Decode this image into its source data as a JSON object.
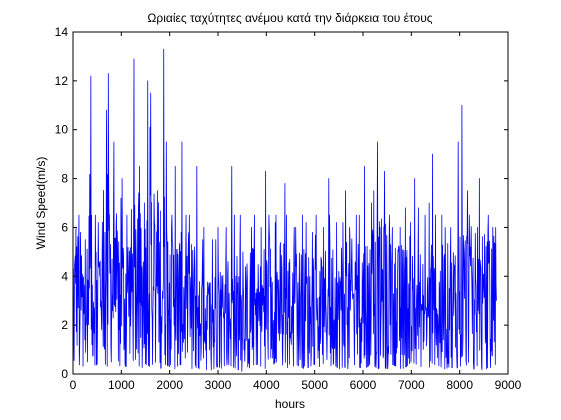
{
  "chart_data": {
    "type": "line",
    "title": "Ωριαίες ταχύτητες ανέμου κατά την διάρκεια του έτους",
    "xlabel": "hours",
    "ylabel": "Wind Speed(m/s)",
    "xlim": [
      0,
      9000
    ],
    "ylim": [
      0,
      14
    ],
    "xticks": [
      0,
      1000,
      2000,
      3000,
      4000,
      5000,
      6000,
      7000,
      8000,
      9000
    ],
    "yticks": [
      0,
      2,
      4,
      6,
      8,
      10,
      12,
      14
    ],
    "grid": false,
    "series": [
      {
        "color": "#0000ff",
        "x": [
          0,
          100,
          200,
          300,
          400,
          500,
          600,
          700,
          800,
          900,
          1000,
          1100,
          1200,
          1300,
          1400,
          1500,
          1600,
          1700,
          1800,
          1900,
          2000,
          2100,
          2200,
          2300,
          2400,
          2500,
          2600,
          2700,
          2800,
          2900,
          3000,
          3100,
          3200,
          3300,
          3400,
          3500,
          3600,
          3700,
          3800,
          3900,
          4000,
          4100,
          4200,
          4300,
          4400,
          4500,
          4600,
          4700,
          4800,
          4900,
          5000,
          5100,
          5200,
          5300,
          5400,
          5500,
          5600,
          5700,
          5800,
          5900,
          6000,
          6100,
          6200,
          6300,
          6400,
          6500,
          6600,
          6700,
          6800,
          6900,
          7000,
          7100,
          7200,
          7300,
          7400,
          7500,
          7600,
          7700,
          7800,
          7900,
          8000,
          8100,
          8200,
          8300,
          8400,
          8500,
          8600,
          8700,
          8760
        ],
        "min": [
          0.6,
          0.4,
          0.3,
          0.5,
          0.2,
          0.4,
          0.6,
          0.3,
          0.5,
          0.2,
          0.4,
          0.3,
          0.5,
          0.6,
          0.2,
          0.4,
          0.3,
          0.5,
          0.2,
          0.4,
          0.3,
          0.2,
          0.4,
          0.3,
          0.1,
          0.3,
          0.2,
          0.3,
          0.1,
          0.2,
          0.3,
          0.2,
          0.4,
          0.3,
          0.2,
          0.1,
          0.3,
          0.2,
          0.4,
          0.3,
          0.2,
          0.3,
          0.5,
          0.4,
          0.3,
          0.2,
          0.4,
          0.3,
          0.2,
          0.3,
          0.4,
          0.3,
          0.2,
          0.3,
          0.4,
          0.2,
          0.3,
          0.2,
          0.4,
          0.3,
          0.2,
          0.3,
          0.4,
          0.2,
          0.3,
          0.2,
          0.4,
          0.3,
          0.2,
          0.3,
          0.5,
          0.4,
          0.3,
          0.2,
          0.3,
          0.4,
          0.3,
          0.2,
          0.3,
          0.2,
          0.3,
          0.4,
          0.3,
          0.2,
          0.3,
          0.1,
          0.3,
          0.2,
          0.5
        ],
        "max": [
          6.0,
          6.5,
          5.5,
          12.2,
          6.5,
          6.2,
          10.8,
          12.3,
          9.5,
          7.2,
          8.0,
          6.5,
          12.9,
          8.5,
          7.0,
          12.0,
          11.5,
          7.5,
          13.3,
          9.5,
          6.5,
          8.5,
          9.5,
          6.5,
          6.5,
          8.5,
          5.5,
          6.0,
          5.5,
          5.5,
          6.0,
          6.0,
          8.5,
          6.5,
          6.5,
          5.0,
          6.0,
          6.5,
          6.0,
          8.3,
          6.5,
          6.2,
          6.5,
          7.8,
          6.5,
          6.0,
          6.0,
          6.5,
          6.2,
          5.8,
          6.5,
          6.0,
          8.0,
          6.5,
          6.2,
          6.2,
          7.5,
          6.0,
          6.5,
          6.5,
          8.5,
          7.0,
          7.5,
          9.5,
          8.3,
          6.5,
          6.0,
          6.0,
          6.8,
          6.2,
          8.0,
          6.8,
          6.5,
          7.0,
          9.0,
          6.5,
          6.5,
          6.0,
          6.0,
          9.5,
          11.0,
          7.5,
          6.5,
          6.0,
          8.0,
          6.5,
          6.0,
          6.0,
          5.5
        ],
        "mean": [
          3.4,
          3.2,
          2.9,
          3.5,
          3.2,
          3.3,
          3.9,
          4.2,
          3.8,
          3.3,
          3.0,
          3.3,
          3.5,
          3.6,
          3.3,
          3.8,
          3.9,
          3.5,
          4.0,
          3.9,
          3.2,
          3.1,
          3.0,
          2.8,
          2.6,
          2.9,
          2.5,
          2.3,
          2.2,
          2.2,
          2.3,
          2.4,
          2.6,
          2.6,
          2.5,
          2.4,
          2.5,
          2.7,
          2.6,
          2.7,
          2.8,
          2.8,
          2.9,
          2.8,
          2.7,
          2.6,
          2.7,
          2.7,
          2.6,
          2.6,
          2.5,
          2.5,
          2.6,
          2.8,
          2.9,
          2.8,
          2.9,
          2.8,
          2.9,
          2.9,
          3.0,
          3.0,
          3.1,
          3.1,
          3.2,
          2.9,
          2.7,
          2.7,
          2.7,
          2.7,
          2.8,
          2.6,
          2.5,
          2.4,
          2.5,
          2.5,
          2.6,
          2.7,
          2.7,
          2.9,
          3.1,
          3.3,
          3.2,
          3.0,
          3.1,
          2.9,
          2.8,
          2.9,
          3.0
        ]
      }
    ]
  }
}
